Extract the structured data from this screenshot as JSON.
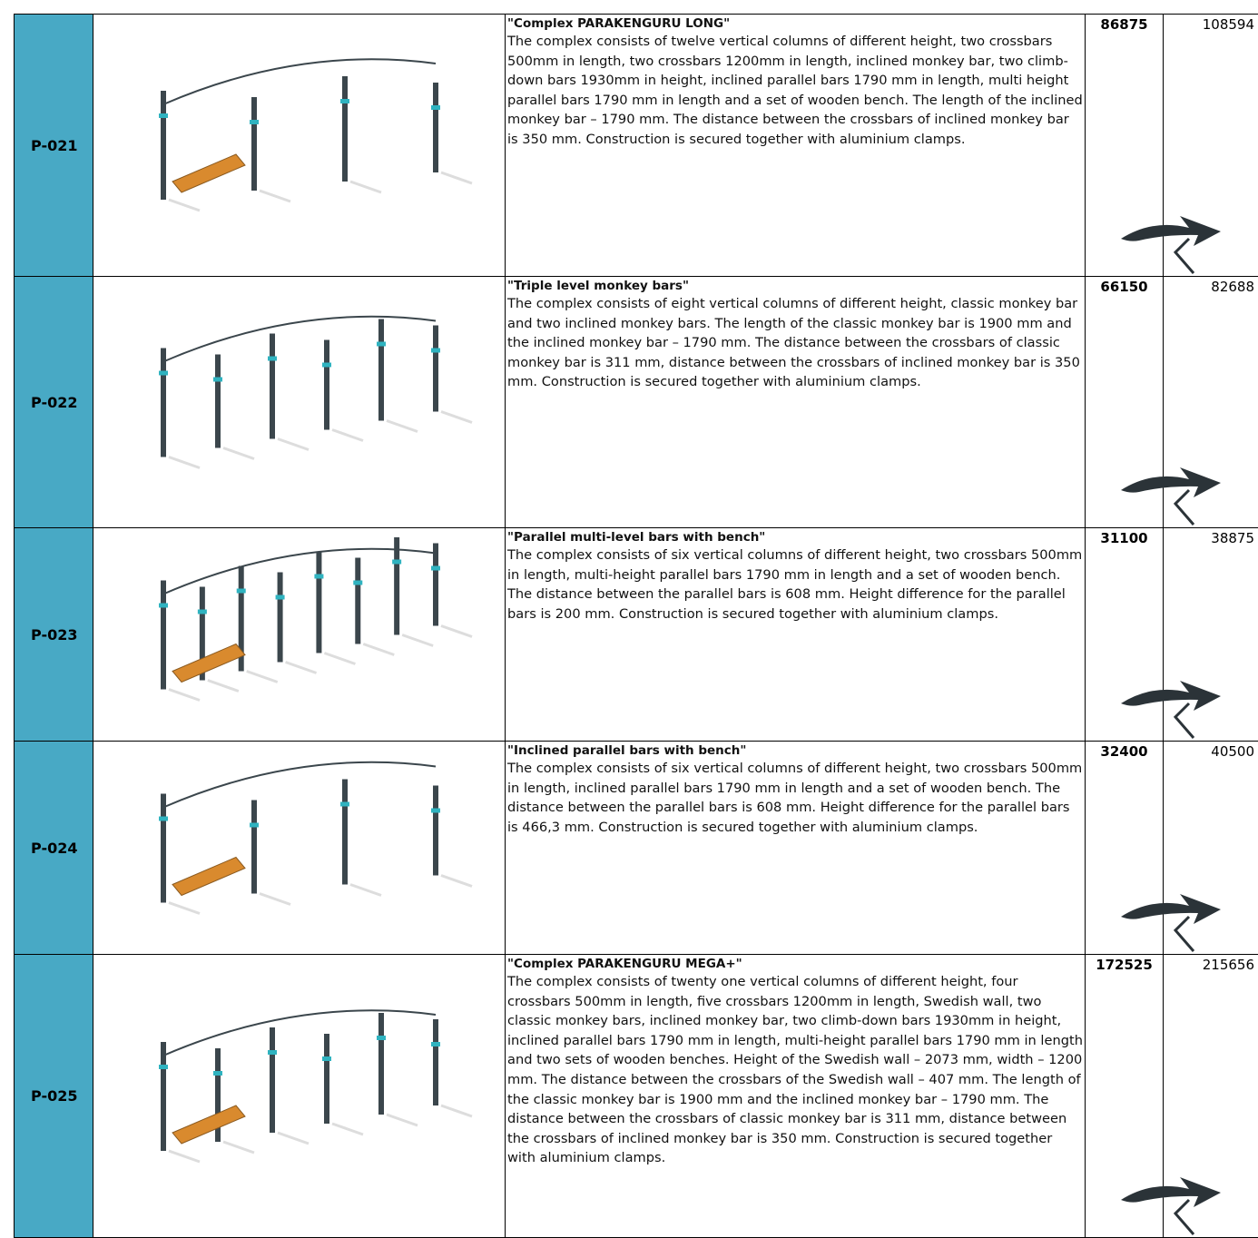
{
  "rows": [
    {
      "code": "P-021",
      "title": "\"Complex PARAKENGURU LONG\"",
      "description": "The complex consists of twelve vertical columns of different height, two crossbars 500mm in length, two crossbars 1200mm in length, inclined monkey bar, two climb-down bars 1930mm in height, inclined parallel bars 1790 mm in length, multi height parallel bars 1790 mm in length and a set of wooden bench. The length of the inclined monkey bar – 1790 mm. The distance between the crossbars of inclined monkey bar is 350 mm. Construction is secured together with aluminium clamps.",
      "price": 86875,
      "price_gross": 108594
    },
    {
      "code": "P-022",
      "title": "\"Triple level monkey bars\"",
      "description": "The complex consists of eight vertical columns of different height, classic monkey bar and two inclined monkey bars. The length of the classic monkey bar is 1900 mm and the inclined monkey bar – 1790 mm. The distance between the crossbars of classic monkey bar is 311 mm, distance between the crossbars of inclined monkey bar is 350 mm. Construction is secured together with aluminium clamps.",
      "price": 66150,
      "price_gross": 82688
    },
    {
      "code": "P-023",
      "title": "\"Parallel multi-level bars with bench\"",
      "description": "The complex consists of six vertical columns of different height, two crossbars 500mm in length, multi-height parallel bars 1790 mm in length and a set of wooden bench. The distance between the parallel bars is 608 mm. Height difference for the parallel bars is 200 mm. Construction is secured together with aluminium clamps.",
      "price": 31100,
      "price_gross": 38875
    },
    {
      "code": "P-024",
      "title": "\"Inclined parallel bars with bench\"",
      "description": "The complex consists of six vertical columns of different height, two crossbars 500mm in length, inclined parallel bars 1790 mm in length and a set of wooden bench. The distance between the parallel bars is 608 mm. Height difference for the parallel bars is 466,3 mm. Construction is secured together with aluminium clamps.",
      "price": 32400,
      "price_gross": 40500
    },
    {
      "code": "P-025",
      "title": "\"Complex PARAKENGURU MEGA+\"",
      "description": "The complex consists of twenty one vertical columns of different height, four crossbars 500mm in length, five crossbars 1200mm in length, Swedish wall, two classic monkey bars, inclined monkey bar, two climb-down bars 1930mm in height, inclined parallel bars 1790 mm in length, multi-height parallel bars 1790 mm in length and two sets of wooden benches. Height of the Swedish wall – 2073 mm, width – 1200 mm. The distance between the crossbars of the Swedish wall – 407 mm. The length of the classic monkey bar is 1900 mm and the inclined monkey bar – 1790 mm. The distance between the crossbars of classic monkey bar is 311 mm, distance between the crossbars of inclined monkey bar is 350 mm. Construction is secured together with aluminium clamps.",
      "price": 172525,
      "price_gross": 215656
    }
  ]
}
